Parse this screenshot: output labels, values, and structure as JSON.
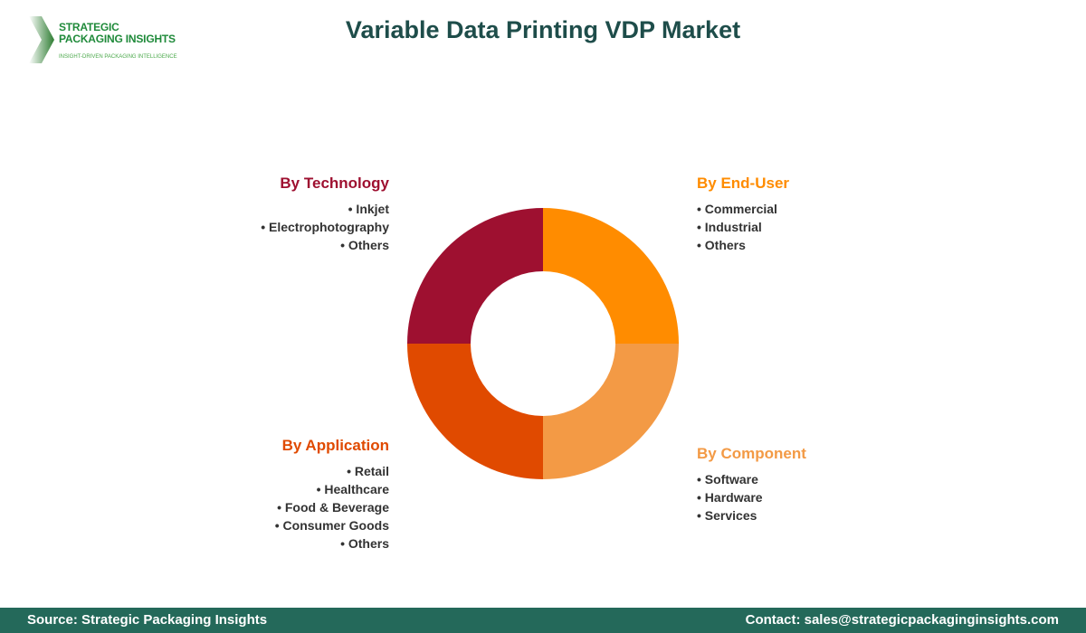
{
  "logo": {
    "line1": "STRATEGIC",
    "line2": "PACKAGING INSIGHTS",
    "tagline": "INSIGHT-DRIVEN PACKAGING INTELLIGENCE"
  },
  "title": "Variable Data Printing VDP Market",
  "chart_data": {
    "type": "pie",
    "donut": true,
    "title": "Variable Data Printing VDP Market",
    "categories": [
      "By End-User",
      "By Component",
      "By Application",
      "By Technology"
    ],
    "values": [
      25,
      25,
      25,
      25
    ],
    "colors": [
      "#FF8C00",
      "#F39A45",
      "#E04A00",
      "#9E1030"
    ]
  },
  "segments": [
    {
      "title": "By Technology",
      "color": "#9E1030",
      "items": [
        "Inkjet",
        "Electrophotography",
        "Others"
      ]
    },
    {
      "title": "By End-User",
      "color": "#FF8C00",
      "items": [
        "Commercial",
        "Industrial",
        "Others"
      ]
    },
    {
      "title": "By Application",
      "color": "#E04A00",
      "items": [
        "Retail",
        "Healthcare",
        "Food & Beverage",
        "Consumer Goods",
        "Others"
      ]
    },
    {
      "title": "By Component",
      "color": "#F39A45",
      "items": [
        "Software",
        "Hardware",
        "Services"
      ]
    }
  ],
  "footer": {
    "source": "Source: Strategic Packaging Insights",
    "contact": "Contact: sales@strategicpackaginginsights.com"
  }
}
